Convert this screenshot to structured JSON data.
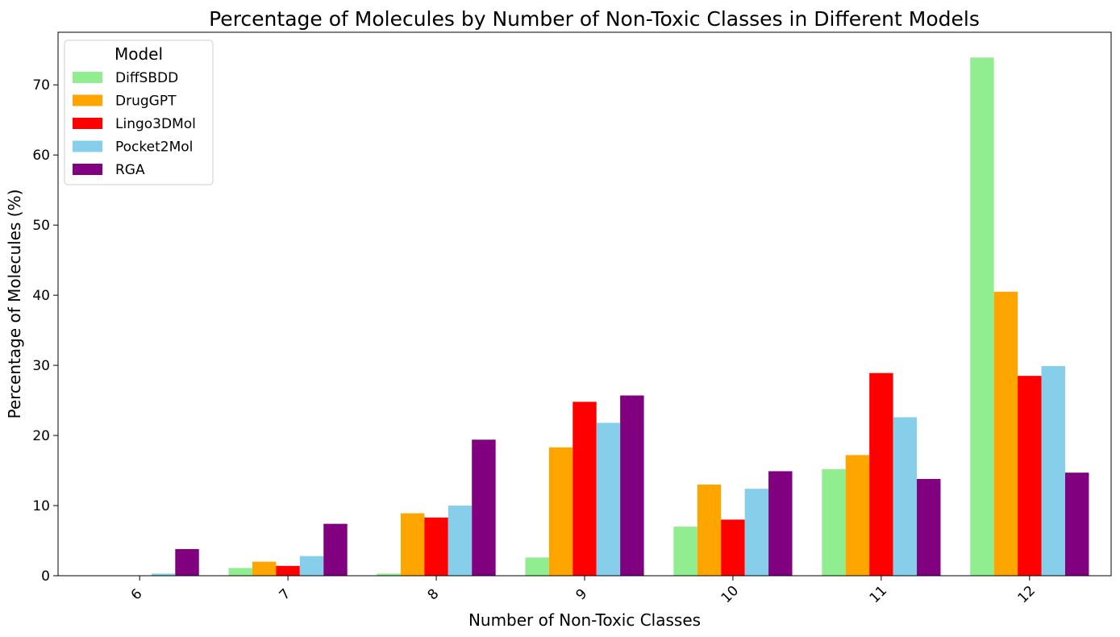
{
  "chart_data": {
    "type": "bar",
    "title": "Percentage of Molecules by Number of Non-Toxic Classes in Different Models",
    "xlabel": "Number of Non-Toxic Classes",
    "ylabel": "Percentage of Molecules (%)",
    "categories": [
      "6",
      "7",
      "8",
      "9",
      "10",
      "11",
      "12"
    ],
    "ylim": [
      0,
      77.5
    ],
    "yticks": [
      0,
      10,
      20,
      30,
      40,
      50,
      60,
      70
    ],
    "grid": false,
    "legend": {
      "title": "Model",
      "placement": "top-left"
    },
    "series": [
      {
        "name": "DiffSBDD",
        "color": "#90ee90",
        "values": [
          0,
          1.1,
          0.3,
          2.6,
          7.0,
          15.2,
          73.9
        ]
      },
      {
        "name": "DrugGPT",
        "color": "#ffa500",
        "values": [
          0,
          2.0,
          8.9,
          18.3,
          13.0,
          17.2,
          40.5
        ]
      },
      {
        "name": "Lingo3DMol",
        "color": "#ff0000",
        "values": [
          0,
          1.4,
          8.3,
          24.8,
          8.0,
          28.9,
          28.5
        ]
      },
      {
        "name": "Pocket2Mol",
        "color": "#87ceeb",
        "values": [
          0.3,
          2.8,
          10.0,
          21.8,
          12.4,
          22.6,
          29.9
        ]
      },
      {
        "name": "RGA",
        "color": "#800080",
        "values": [
          3.8,
          7.4,
          19.4,
          25.7,
          14.9,
          13.8,
          14.7
        ]
      }
    ]
  }
}
